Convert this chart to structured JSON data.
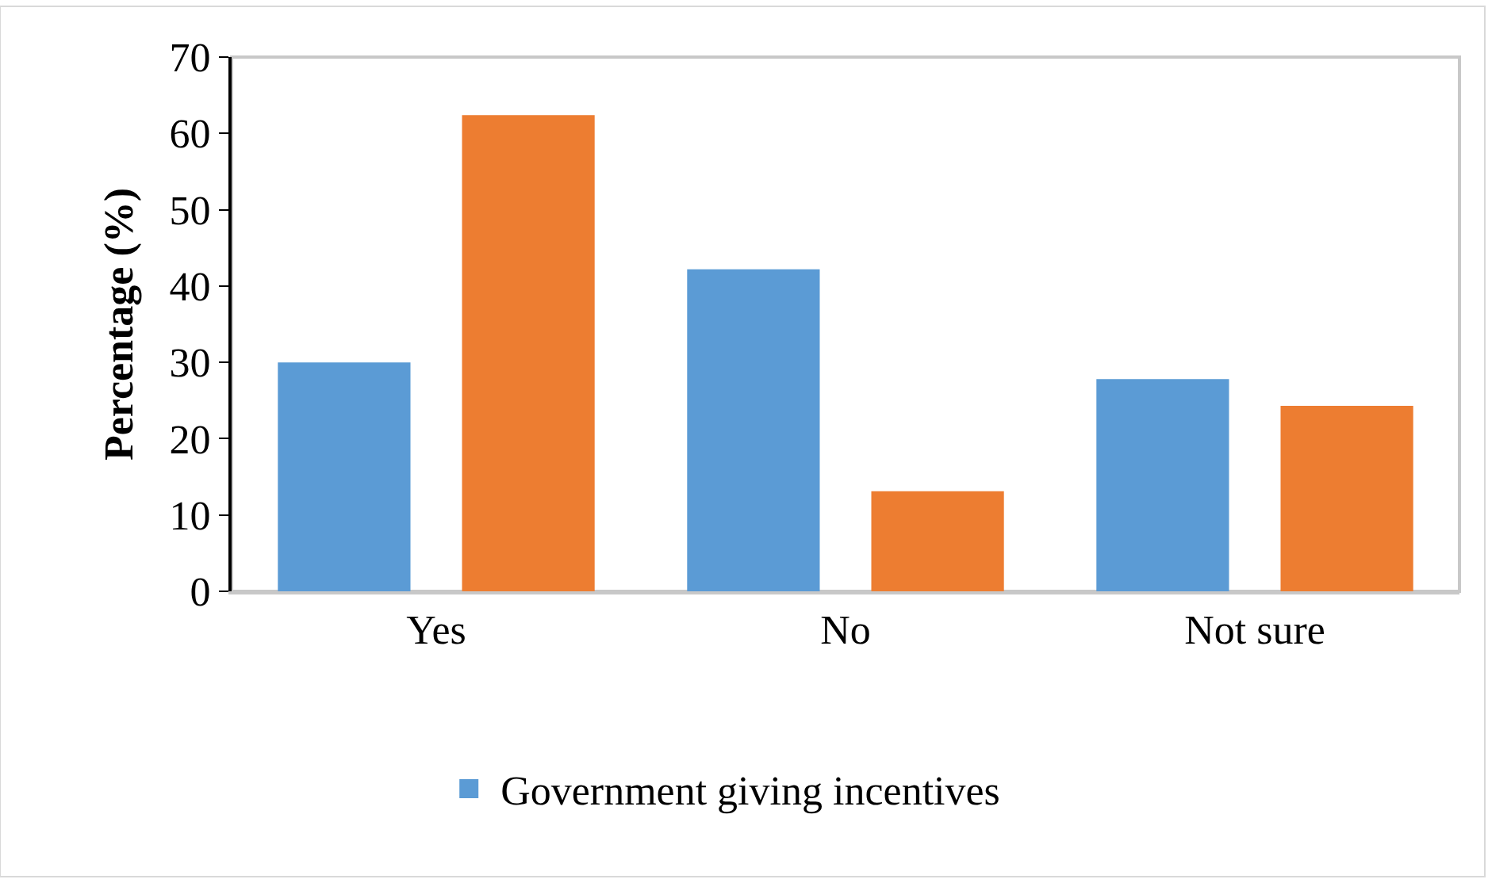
{
  "chart_data": {
    "type": "bar",
    "ylabel": "Percentage (%)",
    "categories": [
      "Yes",
      "No",
      "Not sure"
    ],
    "series": [
      {
        "name": "Government giving incentives",
        "color": "#5b9bd5",
        "values": [
          30,
          42.2,
          27.8
        ]
      },
      {
        "color": "#ed7d31",
        "values": [
          62.4,
          13.1,
          24.3
        ]
      }
    ],
    "ylim": [
      0,
      70
    ],
    "yticks": [
      0,
      10,
      20,
      30,
      40,
      50,
      60,
      70
    ],
    "grid": false,
    "legend": "bottom"
  }
}
